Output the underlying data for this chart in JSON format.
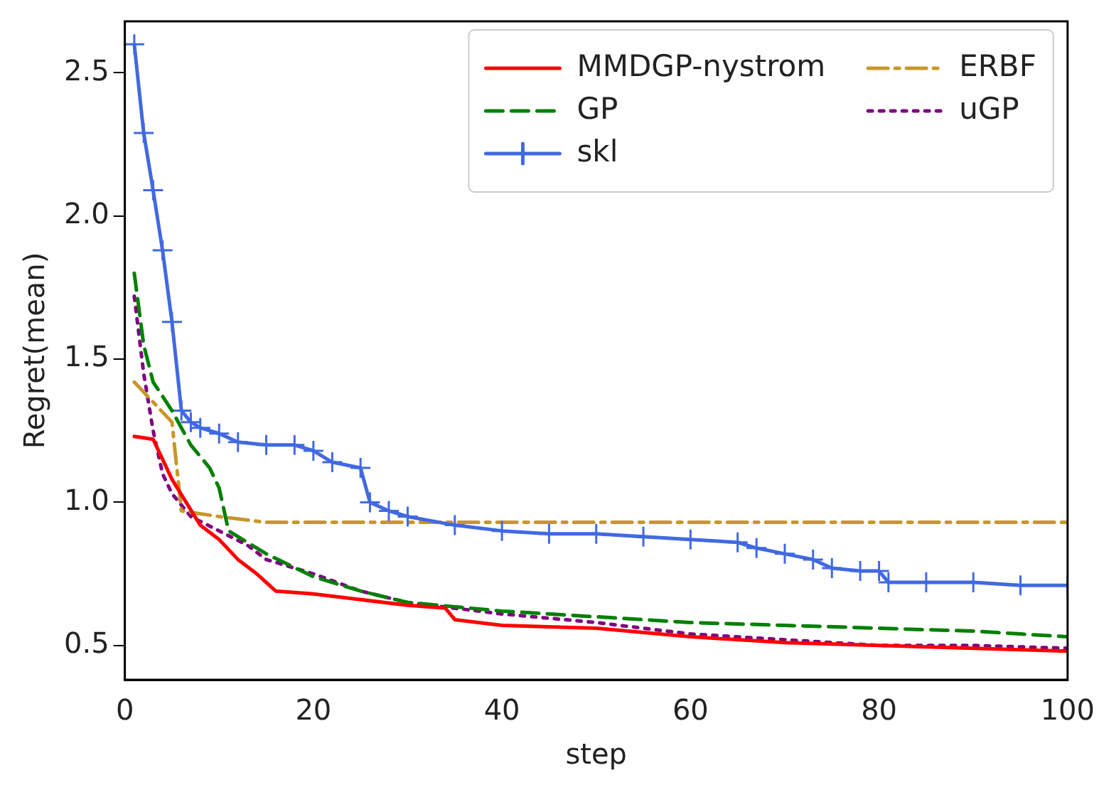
{
  "chart_data": {
    "type": "line",
    "xlabel": "step",
    "ylabel": "Regret(mean)",
    "xlim": [
      0,
      100
    ],
    "xticks": [
      0,
      20,
      40,
      60,
      80,
      100
    ],
    "ylim": [
      0.38,
      2.68
    ],
    "yticks": [
      0.5,
      {
        "value": 1,
        "label": "1.0"
      },
      1.5,
      {
        "value": 2,
        "label": "2.0"
      },
      2.5
    ],
    "grid": false,
    "legend": "top right",
    "series": [
      {
        "name": "MMDGP-nystrom",
        "color": "#ff0000",
        "line_style": "solid",
        "marker": "none",
        "x": [
          1,
          3,
          5,
          8,
          10,
          12,
          14,
          16,
          20,
          25,
          30,
          34,
          35,
          40,
          50,
          60,
          70,
          80,
          90,
          100
        ],
        "values": [
          1.23,
          1.22,
          1.08,
          0.92,
          0.87,
          0.8,
          0.75,
          0.69,
          0.68,
          0.66,
          0.64,
          0.63,
          0.59,
          0.57,
          0.56,
          0.53,
          0.51,
          0.5,
          0.49,
          0.48
        ]
      },
      {
        "name": "GP",
        "color": "#008000",
        "line_style": "dashed",
        "marker": "none",
        "x": [
          1,
          2,
          3,
          5,
          7,
          9,
          10,
          11,
          13,
          15,
          20,
          25,
          30,
          40,
          50,
          60,
          70,
          80,
          90,
          95,
          100
        ],
        "values": [
          1.8,
          1.55,
          1.42,
          1.32,
          1.2,
          1.12,
          1.05,
          0.9,
          0.86,
          0.82,
          0.74,
          0.69,
          0.65,
          0.62,
          0.6,
          0.58,
          0.57,
          0.56,
          0.55,
          0.54,
          0.53
        ]
      },
      {
        "name": "skl",
        "color": "#4169e1",
        "line_style": "solid",
        "marker": "cross",
        "x": [
          1,
          2,
          3,
          4,
          5,
          6,
          7,
          8,
          10,
          12,
          15,
          18,
          20,
          22,
          25,
          26,
          28,
          30,
          35,
          40,
          45,
          50,
          55,
          60,
          65,
          67,
          70,
          73,
          75,
          78,
          80,
          81,
          85,
          90,
          95,
          100
        ],
        "values": [
          2.6,
          2.29,
          2.09,
          1.88,
          1.63,
          1.32,
          1.28,
          1.26,
          1.24,
          1.21,
          1.2,
          1.2,
          1.18,
          1.14,
          1.12,
          1.0,
          0.97,
          0.95,
          0.92,
          0.9,
          0.89,
          0.89,
          0.88,
          0.87,
          0.86,
          0.84,
          0.82,
          0.8,
          0.77,
          0.76,
          0.76,
          0.72,
          0.72,
          0.72,
          0.71,
          0.71
        ]
      },
      {
        "name": "ERBF",
        "color": "#c8962a",
        "line_style": "dashdot",
        "marker": "none",
        "x": [
          1,
          5,
          6,
          10,
          15,
          100
        ],
        "values": [
          1.42,
          1.28,
          0.97,
          0.95,
          0.93,
          0.93
        ]
      },
      {
        "name": "uGP",
        "color": "#800080",
        "line_style": "dotted",
        "marker": "none",
        "x": [
          1,
          2,
          3,
          4,
          5,
          7,
          10,
          13,
          15,
          20,
          25,
          30,
          40,
          50,
          60,
          70,
          80,
          90,
          100
        ],
        "values": [
          1.72,
          1.45,
          1.25,
          1.1,
          1.03,
          0.95,
          0.9,
          0.85,
          0.8,
          0.75,
          0.69,
          0.65,
          0.61,
          0.58,
          0.54,
          0.52,
          0.5,
          0.5,
          0.49
        ]
      }
    ]
  }
}
